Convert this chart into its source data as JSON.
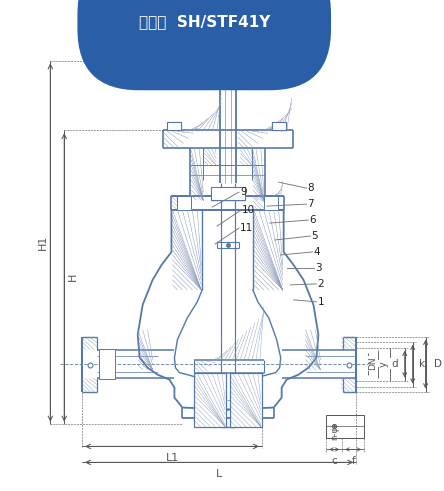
{
  "title": "型号：  SH/STF41Y",
  "title_bg": "#2a5fa8",
  "title_fg": "#ffffff",
  "bg": "#ffffff",
  "lc": "#5577aa",
  "hc": "#8899bb",
  "dc": "#555555",
  "fig_w": 4.44,
  "fig_h": 4.91,
  "parts": [
    [
      "1",
      318,
      302,
      295,
      300
    ],
    [
      "2",
      318,
      284,
      292,
      285
    ],
    [
      "3",
      316,
      268,
      288,
      268
    ],
    [
      "4",
      314,
      252,
      282,
      255
    ],
    [
      "5",
      312,
      236,
      276,
      240
    ],
    [
      "6",
      310,
      220,
      271,
      223
    ],
    [
      "7",
      308,
      204,
      268,
      206
    ],
    [
      "8",
      308,
      188,
      280,
      182
    ],
    [
      "9",
      240,
      192,
      213,
      207
    ],
    [
      "10",
      242,
      210,
      218,
      226
    ],
    [
      "11",
      240,
      228,
      216,
      244
    ]
  ]
}
